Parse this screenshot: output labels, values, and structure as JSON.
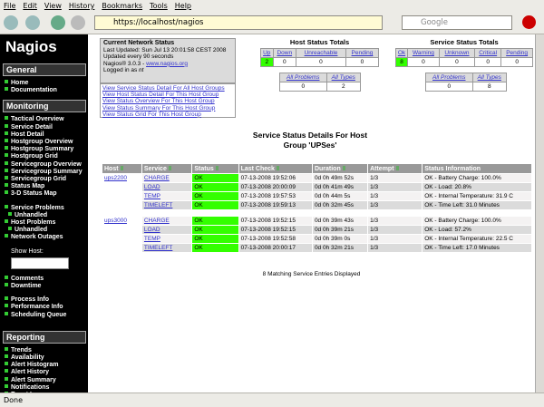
{
  "browser": {
    "menu": [
      "File",
      "Edit",
      "View",
      "History",
      "Bookmarks",
      "Tools",
      "Help"
    ],
    "url": "https://localhost/nagios",
    "search_placeholder": "Google",
    "status": "Done"
  },
  "sidebar": {
    "logo": "Nagios",
    "sections": [
      {
        "title": "General",
        "groups": [
          [
            "Home",
            "Documentation"
          ]
        ]
      },
      {
        "title": "Monitoring",
        "groups": [
          [
            "Tactical Overview",
            "Service Detail",
            "Host Detail",
            "Hostgroup Overview",
            "Hostgroup Summary",
            "Hostgroup Grid",
            "Servicegroup Overview",
            "Servicegroup Summary",
            "Servicegroup Grid",
            "Status Map",
            "3-D Status Map"
          ],
          [
            "Service Problems",
            {
              "label": "Unhandled",
              "indent": true
            },
            "Host Problems",
            {
              "label": "Unhandled",
              "indent": true
            },
            "Network Outages"
          ],
          {
            "input_label": "Show Host:"
          },
          [
            "Comments",
            "Downtime"
          ],
          [
            "Process Info",
            "Performance Info",
            "Scheduling Queue"
          ]
        ]
      },
      {
        "title": "Reporting",
        "groups": [
          [
            "Trends",
            "Availability",
            "Alert Histogram",
            "Alert History",
            "Alert Summary",
            "Notifications",
            "Event Log"
          ]
        ]
      }
    ]
  },
  "status_box": {
    "title": "Current Network Status",
    "lines": [
      "Last Updated: Sun Jul 13 20:01:58 CEST 2008",
      "Updated every 90 seconds"
    ],
    "version": "Nagios® 3.0.3 - ",
    "version_link": "www.nagios.org",
    "logged_in": "Logged in as ",
    "user": "nt"
  },
  "links": [
    "View Service Status Detail For All Host Groups",
    "View Host Status Detail For This Host Group",
    "View Status Overview For This Host Group",
    "View Status Summary For This Host Group",
    "View Status Grid For This Host Group"
  ],
  "host_totals": {
    "title": "Host Status Totals",
    "headers": [
      "Up",
      "Down",
      "Unreachable",
      "Pending"
    ],
    "values": [
      2,
      0,
      0,
      0
    ],
    "summary_headers": [
      "All Problems",
      "All Types"
    ],
    "summary_values": [
      0,
      2
    ]
  },
  "service_totals": {
    "title": "Service Status Totals",
    "headers": [
      "Ok",
      "Warning",
      "Unknown",
      "Critical",
      "Pending"
    ],
    "values": [
      8,
      0,
      0,
      0,
      0
    ],
    "summary_headers": [
      "All Problems",
      "All Types"
    ],
    "summary_values": [
      0,
      8
    ]
  },
  "page_title": "Service Status Details For Host Group 'UPSes'",
  "table": {
    "headers": [
      "Host",
      "Service",
      "Status",
      "Last Check",
      "Duration",
      "Attempt",
      "Status Information"
    ],
    "groups": [
      {
        "host": "ups2200",
        "rows": [
          [
            "CHARGE",
            "OK",
            "07-13-2008 19:52:06",
            "0d 0h 49m 52s",
            "1/3",
            "OK - Battery Charge: 100.0%"
          ],
          [
            "LOAD",
            "OK",
            "07-13-2008 20:00:09",
            "0d 0h 41m 49s",
            "1/3",
            "OK - Load: 20.8%"
          ],
          [
            "TEMP",
            "OK",
            "07-13-2008 19:57:53",
            "0d 0h 44m 5s",
            "1/3",
            "OK - Internal Temperature: 31.9 C"
          ],
          [
            "TIMELEFT",
            "OK",
            "07-13-2008 19:59:13",
            "0d 0h 32m 45s",
            "1/3",
            "OK - Time Left: 31.0 Minutes"
          ]
        ]
      },
      {
        "host": "ups3000",
        "rows": [
          [
            "CHARGE",
            "OK",
            "07-13-2008 19:52:15",
            "0d 0h 39m 43s",
            "1/3",
            "OK - Battery Charge: 100.0%"
          ],
          [
            "LOAD",
            "OK",
            "07-13-2008 19:52:15",
            "0d 0h 39m 21s",
            "1/3",
            "OK - Load: 57.2%"
          ],
          [
            "TEMP",
            "OK",
            "07-13-2008 19:52:58",
            "0d 0h 39m 0s",
            "1/3",
            "OK - Internal Temperature: 22.5 C"
          ],
          [
            "TIMELEFT",
            "OK",
            "07-13-2008 20:00:17",
            "0d 0h 32m 21s",
            "1/3",
            "OK - Time Left: 17.0 Minutes"
          ]
        ]
      }
    ]
  },
  "footer": "8 Matching Service Entries Displayed"
}
